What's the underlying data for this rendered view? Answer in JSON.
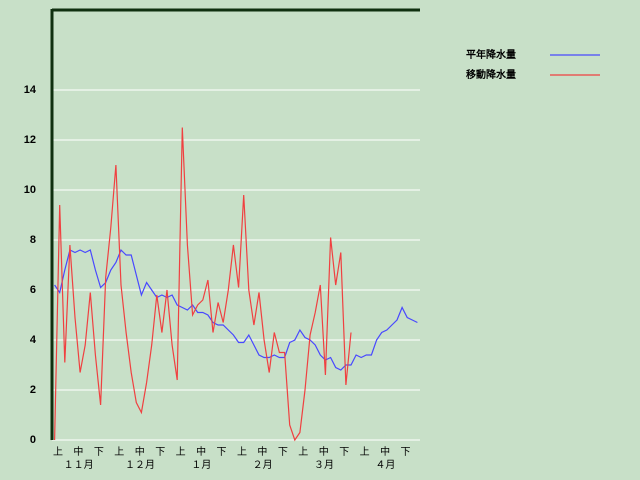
{
  "chart_data": {
    "type": "line",
    "categories": [
      null,
      "上",
      null,
      null,
      null,
      "中",
      null,
      null,
      null,
      "下",
      null,
      null,
      null,
      "上",
      null,
      null,
      null,
      "中",
      null,
      null,
      null,
      "下",
      null,
      null,
      null,
      "上",
      null,
      null,
      null,
      "中",
      null,
      null,
      null,
      "下",
      null,
      null,
      null,
      "上",
      null,
      null,
      null,
      "中",
      null,
      null,
      null,
      "下",
      null,
      null,
      null,
      "上",
      null,
      null,
      null,
      "中",
      null,
      null,
      null,
      "下",
      null,
      null,
      null,
      "上",
      null,
      null,
      null,
      "中",
      null,
      null,
      null,
      "下",
      null,
      null
    ],
    "months": [
      "１１月",
      "１２月",
      "１月",
      "２月",
      "３月",
      "４月"
    ],
    "series": [
      {
        "name": "平年降水量",
        "color": "#4848ff",
        "values": [
          6.2,
          5.9,
          6.8,
          7.6,
          7.5,
          7.6,
          7.5,
          7.6,
          6.8,
          6.1,
          6.3,
          6.8,
          7.1,
          7.6,
          7.4,
          7.4,
          6.6,
          5.8,
          6.3,
          6.0,
          5.7,
          5.8,
          5.7,
          5.8,
          5.4,
          5.3,
          5.2,
          5.4,
          5.1,
          5.1,
          5.0,
          4.7,
          4.6,
          4.6,
          4.4,
          4.2,
          3.9,
          3.9,
          4.2,
          3.8,
          3.4,
          3.3,
          3.3,
          3.4,
          3.3,
          3.3,
          3.9,
          4.0,
          4.4,
          4.1,
          4.0,
          3.8,
          3.4,
          3.2,
          3.3,
          2.9,
          2.8,
          3.0,
          3.0,
          3.4,
          3.3,
          3.4,
          3.4,
          4.0,
          4.3,
          4.4,
          4.6,
          4.8,
          5.3,
          4.9,
          4.8,
          4.7
        ]
      },
      {
        "name": "移動降水量",
        "color": "#f04040",
        "values": [
          0,
          9.4,
          3.1,
          7.8,
          4.9,
          2.7,
          3.8,
          5.9,
          3.4,
          1.4,
          6.5,
          8.5,
          11.0,
          6.2,
          4.3,
          2.7,
          1.5,
          1.1,
          2.3,
          3.8,
          5.8,
          4.3,
          6.0,
          3.8,
          2.4,
          12.5,
          7.8,
          5.0,
          5.4,
          5.6,
          6.4,
          4.3,
          5.5,
          4.7,
          6.0,
          7.8,
          6.1,
          9.8,
          6.0,
          4.6,
          5.9,
          4.0,
          2.7,
          4.3,
          3.5,
          3.5,
          0.6,
          0,
          0.3,
          2.0,
          4.2,
          5.1,
          6.2,
          2.6,
          8.1,
          6.2,
          7.5,
          2.2,
          4.3,
          null,
          null,
          null,
          null,
          null,
          null,
          null,
          null,
          null,
          null,
          null,
          null,
          null
        ]
      }
    ],
    "ylim": [
      0,
      17.2
    ],
    "yticks": [
      0,
      2,
      4,
      6,
      8,
      10,
      12,
      14
    ],
    "grid": true
  }
}
